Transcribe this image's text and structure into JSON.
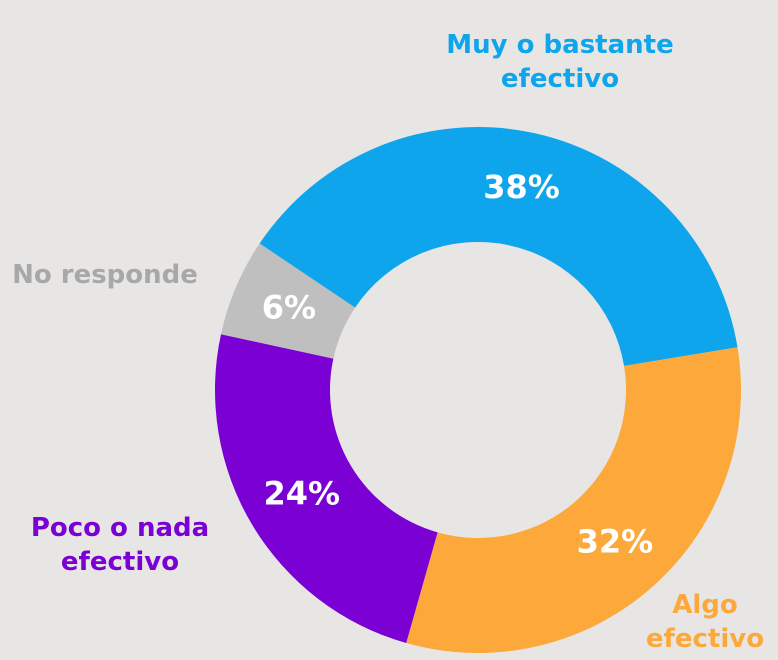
{
  "chart_data": {
    "type": "donut",
    "categories": [
      "Muy o bastante efectivo",
      "Algo efectivo",
      "Poco o nada efectivo",
      "No responde"
    ],
    "values": [
      38,
      32,
      24,
      6
    ],
    "value_labels": [
      "38%",
      "32%",
      "24%",
      "6%"
    ],
    "colors": [
      "#0ea5ec",
      "#fda83a",
      "#7b00d4",
      "#c0bfbf"
    ],
    "label_colors": [
      "#0ea5ec",
      "#fda83a",
      "#7b00d4",
      "#a8a8a8"
    ]
  }
}
